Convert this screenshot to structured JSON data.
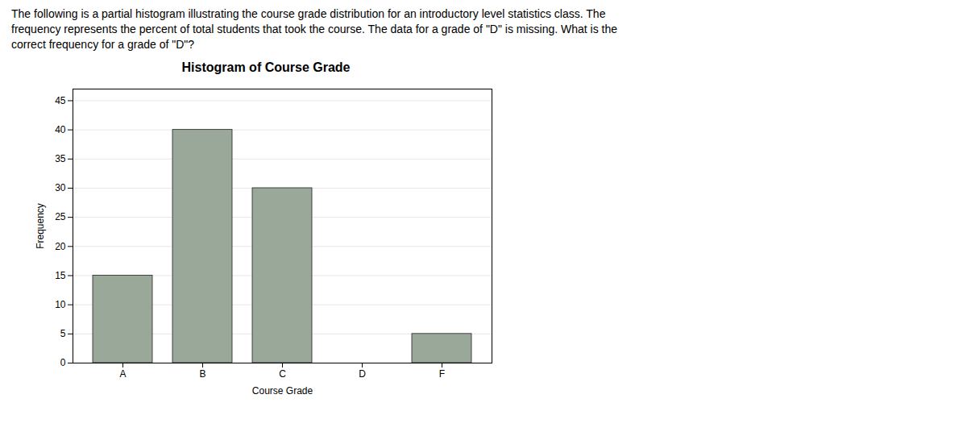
{
  "chart_data": {
    "type": "bar",
    "title": "Histogram of Course Grade",
    "annotations": [
      "The following is a partial histogram illustrating the course grade distribution for an introductory level statistics class. The",
      "frequency represents the percent of total students that took the course. The data for a grade of \"D\" is missing. What is the",
      "correct frequency for a grade of \"D\"?"
    ],
    "xlabel": "Course Grade",
    "ylabel": "Frequency",
    "categories": [
      "A",
      "B",
      "C",
      "D",
      "F"
    ],
    "values": [
      15,
      40,
      30,
      0,
      5
    ],
    "color": "#9aA89a",
    "ylim": [
      0,
      47
    ],
    "yticks": [
      0,
      5,
      10,
      15,
      20,
      25,
      30,
      35,
      40,
      45
    ],
    "grid": true
  }
}
